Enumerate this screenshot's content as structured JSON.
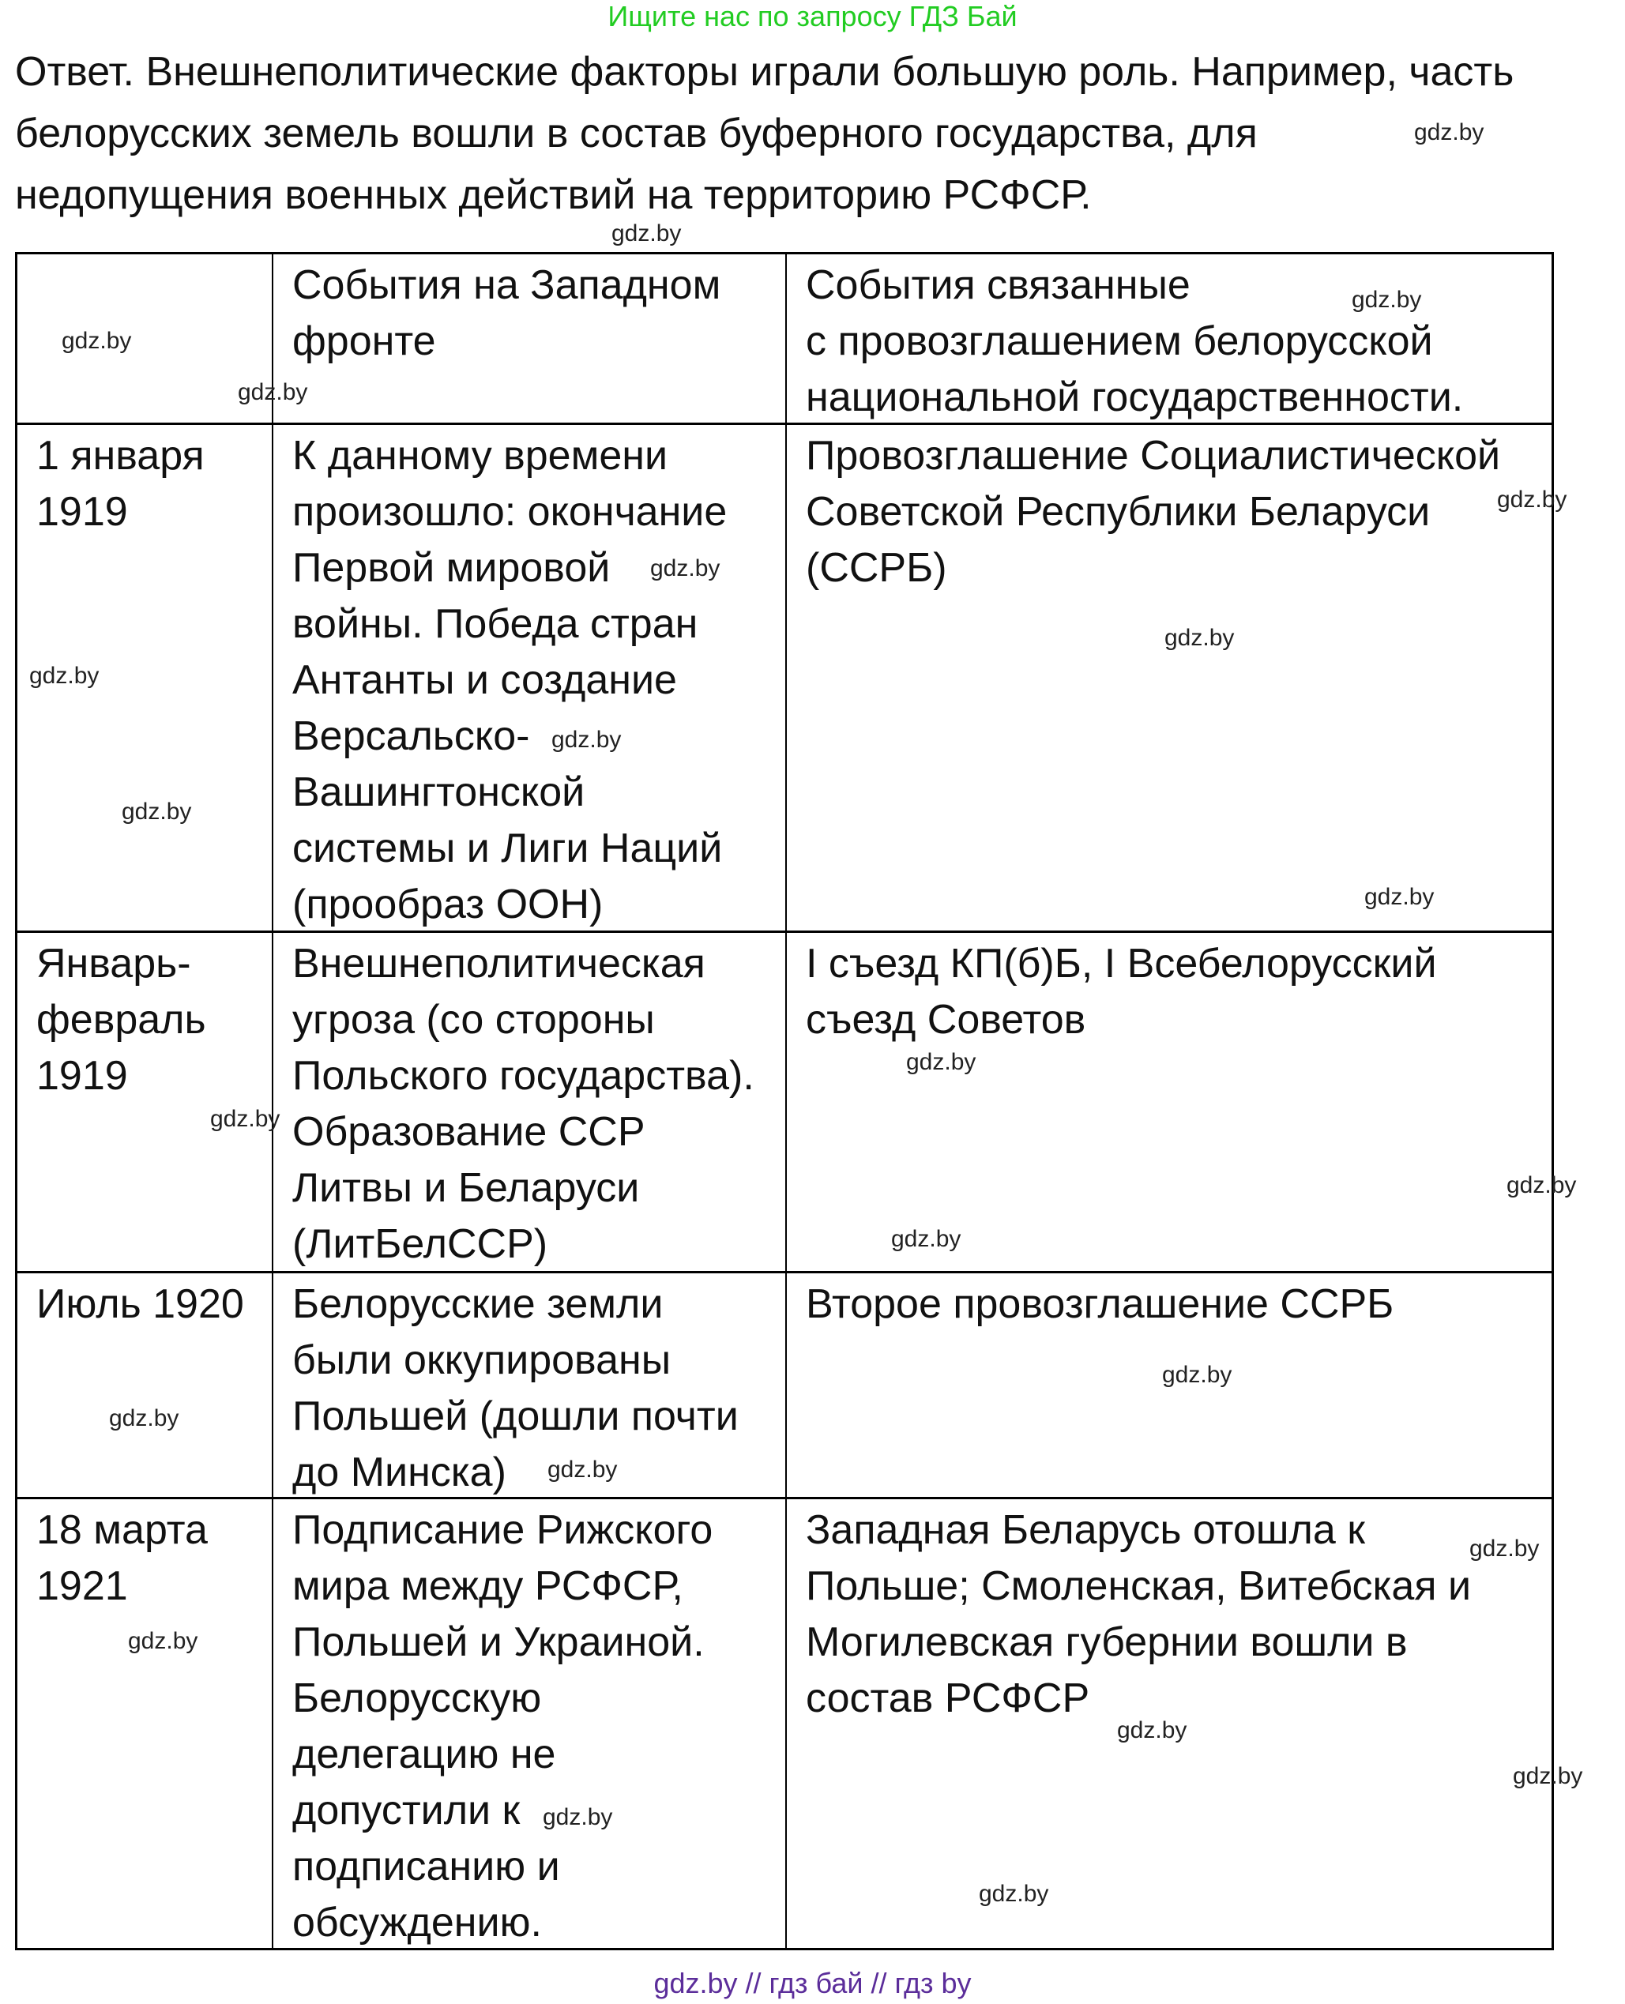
{
  "top_note": "Ищите нас по запросу ГДЗ Бай",
  "answer_lines": [
    "Ответ. Внешнеполитические факторы играли большую роль. Например, часть",
    "белорусских земель вошли в состав буферного государства, для",
    "недопущения военных действий на территорию РСФСР."
  ],
  "table": {
    "header": [
      "",
      "События на Западном фронте",
      "События связанные\nс провозглашением белорусской национальной государственности."
    ],
    "rows": [
      [
        "1 января 1919",
        "К данному времени произошло: окончание Первой мировой войны. Победа стран Антанты и создание Версальско-Вашингтонской системы и Лиги Наций (прообраз ООН)",
        "Провозглашение Социалистической Советской Республики Беларуси (ССРБ)"
      ],
      [
        "Январь-февраль 1919",
        "Внешнеполитическая угроза (со стороны Польского государства). Образование ССР Литвы и Беларуси (ЛитБелССР)",
        "I съезд КП(б)Б, I Всебелорусский съезд Советов"
      ],
      [
        "Июль 1920",
        "Белорусские земли были оккупированы Польшей (дошли почти до Минска)",
        "Второе провозглашение ССРБ"
      ],
      [
        "18 марта 1921",
        "Подписание Рижского мира между РСФСР, Польшей и Украиной. Белорусскую делегацию не допустили к подписанию и обсуждению.",
        "Западная Беларусь отошла к Польше; Смоленская, Витебская и Могилевская губернии вошли в состав РСФСР"
      ]
    ]
  },
  "watermark": "gdz.by",
  "footer": "gdz.by  //  гдз бай  //  гдз by",
  "colors": {
    "top_note": "#22cc22",
    "footer": "#5b2d9a"
  }
}
